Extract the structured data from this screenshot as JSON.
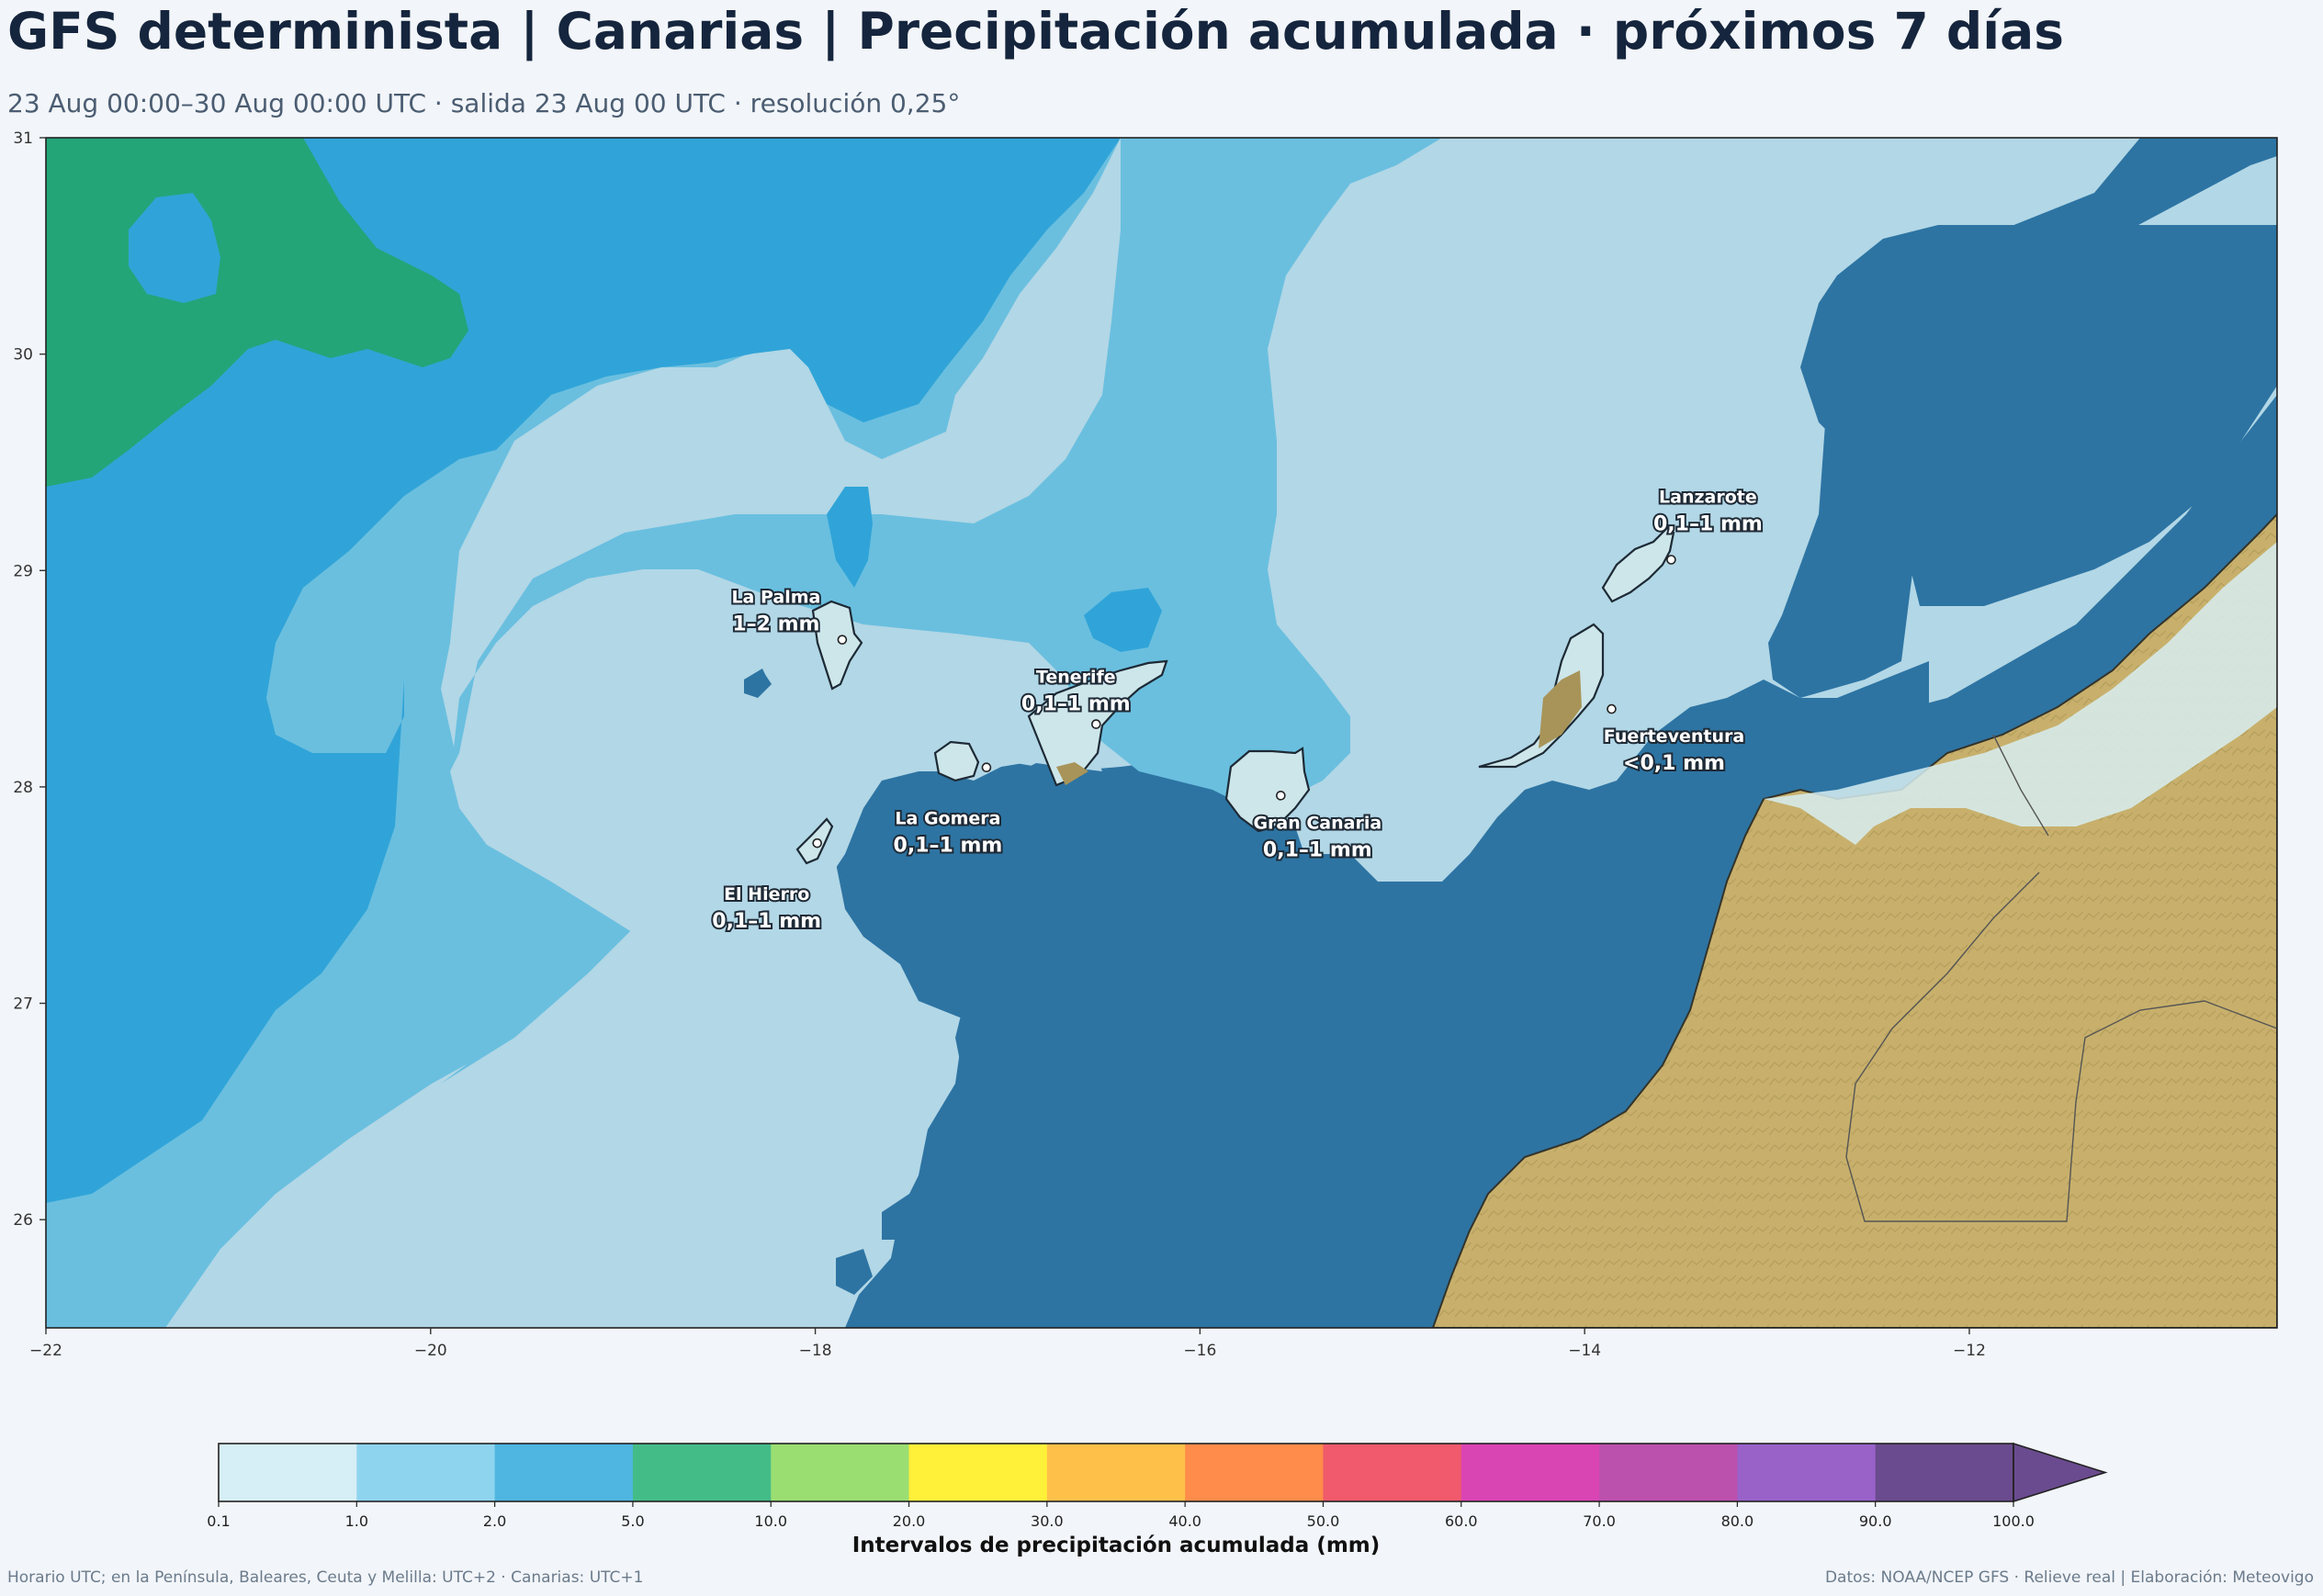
{
  "header": {
    "title": "GFS determinista | Canarias | Precipitación acumulada · próximos 7 días",
    "subtitle": "23 Aug 00:00–30 Aug 00:00 UTC · salida 23 Aug 00 UTC · resolución 0,25°"
  },
  "map": {
    "lon_range": [
      -22,
      -10.4
    ],
    "lat_range": [
      25.5,
      31
    ],
    "x_ticks": [
      "−22",
      "−20",
      "−18",
      "−16",
      "−14",
      "−12"
    ],
    "x_tick_values": [
      -22,
      -20,
      -18,
      -16,
      -14,
      -12
    ],
    "y_ticks": [
      "26",
      "27",
      "28",
      "29",
      "30",
      "31"
    ],
    "y_tick_values": [
      26,
      27,
      28,
      29,
      30,
      31
    ],
    "colors": {
      "ocean_dark": "#2d74a3",
      "band_light": "#b2d7e6",
      "band_mid": "#6abfdf",
      "band_blue": "#30a4d8",
      "band_green": "#23a578",
      "land": "#c8b06c"
    },
    "islands": [
      {
        "name": "La Palma",
        "value": "1–2 mm",
        "lon": -17.86,
        "lat": 28.68
      },
      {
        "name": "Tenerife",
        "value": "0,1–1 mm",
        "lon": -16.54,
        "lat": 28.29
      },
      {
        "name": "La Gomera",
        "value": "0,1–1 mm",
        "lon": -17.11,
        "lat": 28.09
      },
      {
        "name": "El Hierro",
        "value": "0,1–1 mm",
        "lon": -17.99,
        "lat": 27.74
      },
      {
        "name": "Gran Canaria",
        "value": "0,1–1 mm",
        "lon": -15.58,
        "lat": 27.96
      },
      {
        "name": "Lanzarote",
        "value": "0,1–1 mm",
        "lon": -13.55,
        "lat": 29.05
      },
      {
        "name": "Fuerteventura",
        "value": "<0,1 mm",
        "lon": -13.86,
        "lat": 28.36
      }
    ]
  },
  "colorbar": {
    "title": "Intervalos de precipitación acumulada (mm)",
    "ticks": [
      "0.1",
      "1.0",
      "2.0",
      "5.0",
      "10.0",
      "20.0",
      "30.0",
      "40.0",
      "50.0",
      "60.0",
      "70.0",
      "80.0",
      "90.0",
      "100.0"
    ],
    "colors": [
      "#d6eef6",
      "#8fd4ef",
      "#4fb6e1",
      "#44bc88",
      "#9ade72",
      "#fff03a",
      "#ffc04a",
      "#ff8c4a",
      "#f05a6c",
      "#da45b4",
      "#bb50ad",
      "#9962c9",
      "#6a4b8f"
    ],
    "extend_color": "#6a4b8f"
  },
  "footer": {
    "left": "Horario UTC; en la Península, Baleares, Ceuta y Melilla: UTC+2 · Canarias: UTC+1",
    "right": "Datos: NOAA/NCEP GFS · Relieve real | Elaboración: Meteovigo"
  }
}
